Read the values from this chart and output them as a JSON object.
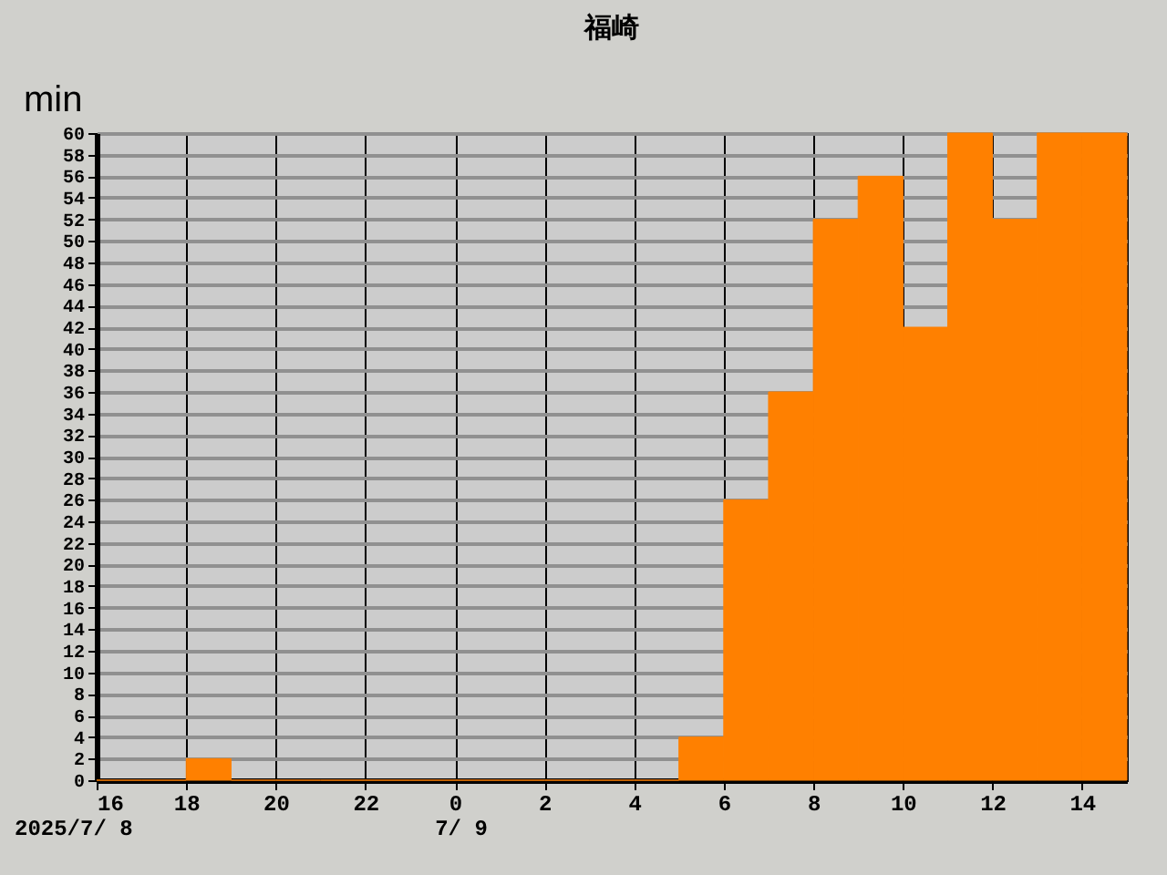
{
  "chart_data": {
    "type": "bar",
    "title": "福崎",
    "ylabel": "min",
    "x": [
      "2025-07-08T16:30",
      "2025-07-08T17:30",
      "2025-07-08T18:30",
      "2025-07-08T19:30",
      "2025-07-08T20:30",
      "2025-07-08T21:30",
      "2025-07-08T22:30",
      "2025-07-08T23:30",
      "2025-07-09T00:30",
      "2025-07-09T01:30",
      "2025-07-09T02:30",
      "2025-07-09T03:30",
      "2025-07-09T04:30",
      "2025-07-09T05:30",
      "2025-07-09T06:30",
      "2025-07-09T07:30",
      "2025-07-09T08:30",
      "2025-07-09T09:30",
      "2025-07-09T10:30",
      "2025-07-09T11:30",
      "2025-07-09T12:30",
      "2025-07-09T13:30",
      "2025-07-09T14:30"
    ],
    "values": [
      0,
      0,
      2,
      0,
      0,
      0,
      0,
      0,
      0,
      0,
      0,
      0,
      0,
      4,
      26,
      36,
      52,
      56,
      42,
      60,
      52,
      60,
      60
    ],
    "color": "#ff8000",
    "xlim": [
      "2025-07-08T16:00",
      "2025-07-09T15:00"
    ],
    "xticks": [
      {
        "value": "2025-07-08T16:00",
        "label": "16"
      },
      {
        "value": "2025-07-08T18:00",
        "label": "18"
      },
      {
        "value": "2025-07-08T20:00",
        "label": "20"
      },
      {
        "value": "2025-07-08T22:00",
        "label": "22"
      },
      {
        "value": "2025-07-09T00:00",
        "label": "0"
      },
      {
        "value": "2025-07-09T02:00",
        "label": "2"
      },
      {
        "value": "2025-07-09T04:00",
        "label": "4"
      },
      {
        "value": "2025-07-09T06:00",
        "label": "6"
      },
      {
        "value": "2025-07-09T08:00",
        "label": "8"
      },
      {
        "value": "2025-07-09T10:00",
        "label": "10"
      },
      {
        "value": "2025-07-09T12:00",
        "label": "12"
      },
      {
        "value": "2025-07-09T14:00",
        "label": "14"
      }
    ],
    "ylim": [
      0,
      60
    ],
    "yticks": [
      0,
      2,
      4,
      6,
      8,
      10,
      12,
      14,
      16,
      18,
      20,
      22,
      24,
      26,
      28,
      30,
      32,
      34,
      36,
      38,
      40,
      42,
      44,
      46,
      48,
      50,
      52,
      54,
      56,
      58,
      60
    ],
    "annotations": [
      "2025/7/ 8",
      "7/ 9"
    ],
    "grid": true
  }
}
